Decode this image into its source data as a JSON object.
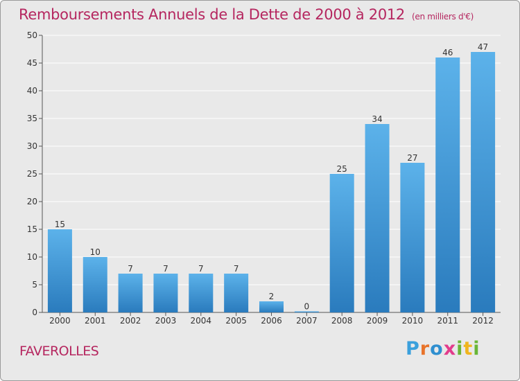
{
  "header": {
    "title": "Remboursements Annuels de la Dette de 2000 à 2012",
    "unit_note": "(en milliers d'€)"
  },
  "footer": {
    "commune": "FAVEROLLES",
    "logo_text": "Proxiti"
  },
  "colors": {
    "bar_top": "#5cb2ea",
    "bar_bottom": "#2a7bbd",
    "title": "#b5265f",
    "grid": "#ffffff",
    "background": "#e9e9e9"
  },
  "chart_data": {
    "type": "bar",
    "title": "Remboursements Annuels de la Dette de 2000 à 2012",
    "subtitle": "(en milliers d'€)",
    "xlabel": "",
    "ylabel": "",
    "categories": [
      "2000",
      "2001",
      "2002",
      "2003",
      "2004",
      "2005",
      "2006",
      "2007",
      "2008",
      "2009",
      "2010",
      "2011",
      "2012"
    ],
    "values": [
      15,
      10,
      7,
      7,
      7,
      7,
      2,
      0,
      25,
      34,
      27,
      46,
      47
    ],
    "ylim": [
      0,
      50
    ],
    "yticks": [
      0,
      5,
      10,
      15,
      20,
      25,
      30,
      35,
      40,
      45,
      50
    ],
    "grid": true,
    "data_labels": true
  }
}
